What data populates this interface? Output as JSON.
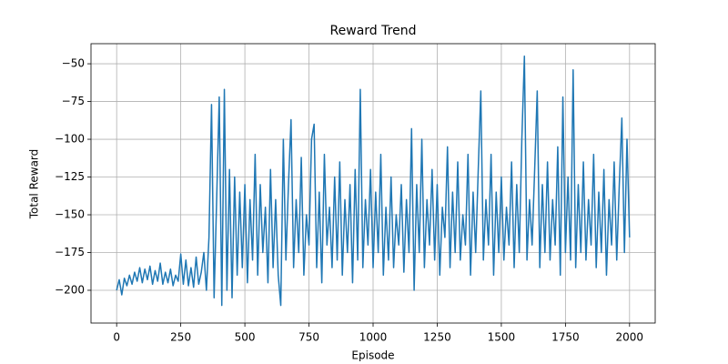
{
  "chart_data": {
    "type": "line",
    "title": "Reward Trend",
    "x_label": "Episode",
    "y_label": "Total Reward",
    "color": "#1f77b4",
    "grid": true,
    "xlim": [
      -100,
      2100
    ],
    "ylim": [
      -221.7,
      -36.7
    ],
    "xticks": [
      0,
      250,
      500,
      750,
      1000,
      1250,
      1500,
      1750,
      2000
    ],
    "yticks": [
      {
        "value": -200,
        "label": "−200"
      },
      {
        "value": -175,
        "label": "−175"
      },
      {
        "value": -150,
        "label": "−150"
      },
      {
        "value": -125,
        "label": "−125"
      },
      {
        "value": -100,
        "label": "−100"
      },
      {
        "value": -75,
        "label": "−75"
      },
      {
        "value": -50,
        "label": "−50"
      }
    ],
    "x": [
      0,
      10,
      20,
      30,
      40,
      50,
      60,
      70,
      80,
      90,
      100,
      110,
      120,
      130,
      140,
      150,
      160,
      170,
      180,
      190,
      200,
      210,
      220,
      230,
      240,
      250,
      260,
      270,
      280,
      290,
      300,
      310,
      320,
      330,
      340,
      350,
      360,
      370,
      380,
      390,
      400,
      410,
      420,
      430,
      440,
      450,
      460,
      470,
      480,
      490,
      500,
      510,
      520,
      530,
      540,
      550,
      560,
      570,
      580,
      590,
      600,
      610,
      620,
      630,
      640,
      650,
      660,
      670,
      680,
      690,
      700,
      710,
      720,
      730,
      740,
      750,
      760,
      770,
      780,
      790,
      800,
      810,
      820,
      830,
      840,
      850,
      860,
      870,
      880,
      890,
      900,
      910,
      920,
      930,
      940,
      950,
      960,
      970,
      980,
      990,
      1000,
      1010,
      1020,
      1030,
      1040,
      1050,
      1060,
      1070,
      1080,
      1090,
      1100,
      1110,
      1120,
      1130,
      1140,
      1150,
      1160,
      1170,
      1180,
      1190,
      1200,
      1210,
      1220,
      1230,
      1240,
      1250,
      1260,
      1270,
      1280,
      1290,
      1300,
      1310,
      1320,
      1330,
      1340,
      1350,
      1360,
      1370,
      1380,
      1390,
      1400,
      1410,
      1420,
      1430,
      1440,
      1450,
      1460,
      1470,
      1480,
      1490,
      1500,
      1510,
      1520,
      1530,
      1540,
      1550,
      1560,
      1570,
      1580,
      1590,
      1600,
      1610,
      1620,
      1630,
      1640,
      1650,
      1660,
      1670,
      1680,
      1690,
      1700,
      1710,
      1720,
      1730,
      1740,
      1750,
      1760,
      1770,
      1780,
      1790,
      1800,
      1810,
      1820,
      1830,
      1840,
      1850,
      1860,
      1870,
      1880,
      1890,
      1900,
      1910,
      1920,
      1930,
      1940,
      1950,
      1960,
      1970,
      1980,
      1990,
      2000
    ],
    "values": [
      -200,
      -193,
      -203,
      -192,
      -197,
      -190,
      -196,
      -188,
      -194,
      -185,
      -195,
      -186,
      -193,
      -184,
      -196,
      -187,
      -194,
      -182,
      -196,
      -188,
      -195,
      -186,
      -197,
      -190,
      -194,
      -176,
      -196,
      -180,
      -197,
      -185,
      -198,
      -178,
      -196,
      -188,
      -175,
      -200,
      -165,
      -77,
      -205,
      -140,
      -72,
      -210,
      -67,
      -200,
      -120,
      -205,
      -125,
      -190,
      -135,
      -185,
      -130,
      -195,
      -140,
      -180,
      -110,
      -190,
      -130,
      -175,
      -145,
      -195,
      -120,
      -185,
      -140,
      -190,
      -210,
      -100,
      -180,
      -130,
      -87,
      -185,
      -140,
      -175,
      -112,
      -190,
      -150,
      -170,
      -100,
      -90,
      -185,
      -135,
      -195,
      -110,
      -170,
      -145,
      -185,
      -125,
      -180,
      -115,
      -190,
      -140,
      -175,
      -130,
      -195,
      -120,
      -180,
      -67,
      -185,
      -140,
      -170,
      -120,
      -185,
      -135,
      -175,
      -110,
      -190,
      -145,
      -180,
      -125,
      -185,
      -150,
      -170,
      -130,
      -188,
      -140,
      -175,
      -93,
      -200,
      -130,
      -175,
      -100,
      -185,
      -140,
      -170,
      -120,
      -180,
      -130,
      -190,
      -145,
      -165,
      -105,
      -185,
      -135,
      -175,
      -115,
      -180,
      -150,
      -170,
      -110,
      -190,
      -135,
      -175,
      -120,
      -68,
      -180,
      -140,
      -170,
      -110,
      -190,
      -135,
      -175,
      -125,
      -180,
      -145,
      -170,
      -115,
      -185,
      -130,
      -175,
      -100,
      -45,
      -180,
      -140,
      -170,
      -120,
      -68,
      -185,
      -130,
      -175,
      -115,
      -180,
      -140,
      -170,
      -105,
      -190,
      -72,
      -175,
      -125,
      -180,
      -54,
      -185,
      -130,
      -175,
      -115,
      -180,
      -140,
      -170,
      -110,
      -185,
      -135,
      -175,
      -120,
      -190,
      -140,
      -170,
      -115,
      -180,
      -130,
      -86,
      -175,
      -100,
      -165
    ]
  }
}
